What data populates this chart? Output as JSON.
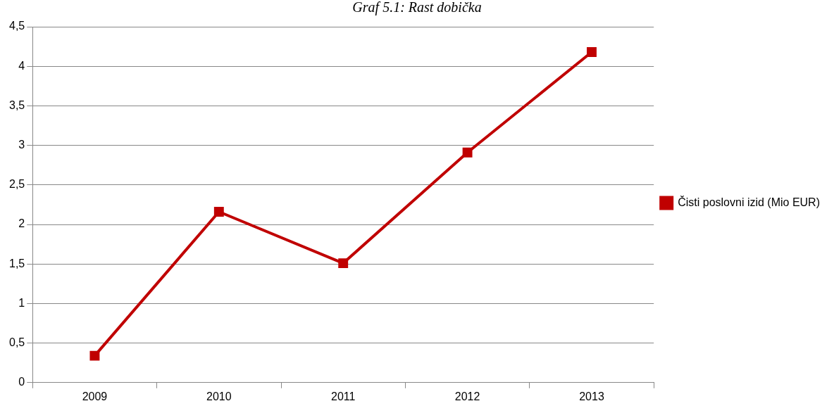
{
  "chart_data": {
    "type": "line",
    "title": "Graf 5.1: Rast dobička",
    "categories": [
      "2009",
      "2010",
      "2011",
      "2012",
      "2013"
    ],
    "series": [
      {
        "name": "Čisti poslovni izid (Mio EUR)",
        "color": "#c00000",
        "values": [
          0.34,
          2.16,
          1.51,
          2.91,
          4.18
        ]
      }
    ],
    "ylim": [
      0,
      4.5
    ],
    "yticks": [
      {
        "value": 0,
        "label": "0"
      },
      {
        "value": 0.5,
        "label": "0,5"
      },
      {
        "value": 1,
        "label": "1"
      },
      {
        "value": 1.5,
        "label": "1,5"
      },
      {
        "value": 2,
        "label": "2"
      },
      {
        "value": 2.5,
        "label": "2,5"
      },
      {
        "value": 3,
        "label": "3"
      },
      {
        "value": 3.5,
        "label": "3,5"
      },
      {
        "value": 4,
        "label": "4"
      },
      {
        "value": 4.5,
        "label": "4,5"
      }
    ],
    "grid": "y",
    "legend": "right",
    "marker": "square",
    "line_style": "solid"
  }
}
